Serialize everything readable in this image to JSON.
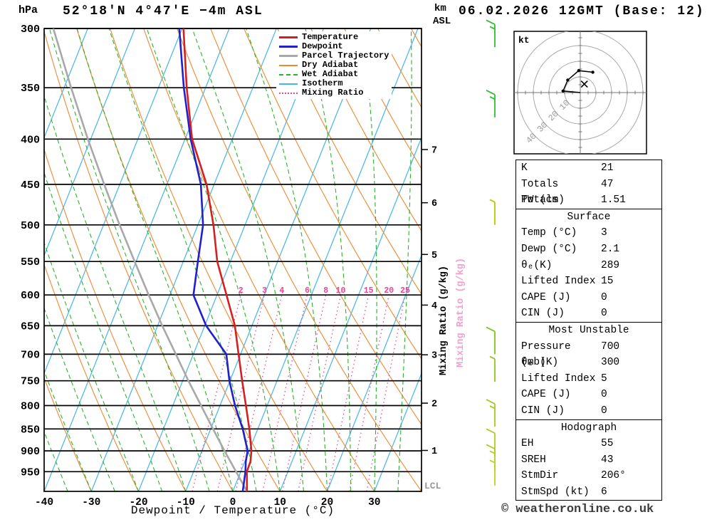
{
  "header": {
    "pressure_unit": "hPa",
    "station_title": "52°18'N 4°47'E −4m ASL",
    "altitude_unit_top": "km",
    "altitude_unit_bottom": "ASL",
    "run_title": "06.02.2026 12GMT (Base: 12)"
  },
  "axes": {
    "pressure_ticks": [
      300,
      350,
      400,
      450,
      500,
      550,
      600,
      650,
      700,
      750,
      800,
      850,
      900,
      950
    ],
    "temp_ticks": [
      -40,
      -30,
      -20,
      -10,
      0,
      10,
      20,
      30
    ],
    "km_ticks": [
      1,
      2,
      3,
      4,
      5,
      6,
      7
    ],
    "x_label": "Dewpoint / Temperature (°C)",
    "mixing_axis_label": "Mixing Ratio (g/kg)",
    "lcl_label": "LCL"
  },
  "legend": {
    "items": [
      {
        "label": "Temperature",
        "color": "#d42020",
        "style": "solid-thick"
      },
      {
        "label": "Dewpoint",
        "color": "#2020cc",
        "style": "solid-thick"
      },
      {
        "label": "Parcel Trajectory",
        "color": "#a8a8a8",
        "style": "solid-thick"
      },
      {
        "label": "Dry Adiabat",
        "color": "#ee8830",
        "style": "solid"
      },
      {
        "label": "Wet Adiabat",
        "color": "#2ab52a",
        "style": "dashed"
      },
      {
        "label": "Isotherm",
        "color": "#45b5e8",
        "style": "solid"
      },
      {
        "label": "Mixing Ratio",
        "color": "#ee4499",
        "style": "dotted"
      }
    ]
  },
  "hodograph": {
    "unit_label": "kt",
    "ring_labels": [
      10,
      20,
      30,
      40
    ],
    "trace_kt": [
      [
        0,
        0
      ],
      [
        -11,
        1
      ],
      [
        -8,
        8
      ],
      [
        -1,
        14
      ],
      [
        8,
        13
      ]
    ],
    "storm_motion_kt": [
      2.6,
      5.4
    ]
  },
  "stats_table": {
    "sections": [
      {
        "header": null,
        "rows": [
          [
            "K",
            "21"
          ],
          [
            "Totals Totals",
            "47"
          ],
          [
            "PW (cm)",
            "1.51"
          ]
        ]
      },
      {
        "header": "Surface",
        "rows": [
          [
            "Temp (°C)",
            "3"
          ],
          [
            "Dewp (°C)",
            "2.1"
          ],
          [
            "θₑ(K)",
            "289"
          ],
          [
            "Lifted Index",
            "15"
          ],
          [
            "CAPE (J)",
            "0"
          ],
          [
            "CIN (J)",
            "0"
          ]
        ]
      },
      {
        "header": "Most Unstable",
        "rows": [
          [
            "Pressure (mb)",
            "700"
          ],
          [
            "θₑ (K)",
            "300"
          ],
          [
            "Lifted Index",
            "5"
          ],
          [
            "CAPE (J)",
            "0"
          ],
          [
            "CIN (J)",
            "0"
          ]
        ]
      },
      {
        "header": "Hodograph",
        "rows": [
          [
            "EH",
            "55"
          ],
          [
            "SREH",
            "43"
          ],
          [
            "StmDir",
            "206°"
          ],
          [
            "StmSpd (kt)",
            "6"
          ]
        ]
      }
    ]
  },
  "footer": {
    "copyright": "© weatheronline.co.uk"
  },
  "chart_data": {
    "type": "line",
    "title": "Skew-T log-P sounding 52°18'N 4°47'E −4m ASL, 06.02.2026 12GMT (Base: 12)",
    "x_axis": {
      "label": "Dewpoint / Temperature (°C)",
      "range": [
        -40,
        40
      ]
    },
    "y_axis": {
      "label": "hPa",
      "range": [
        1000,
        300
      ],
      "scale": "log"
    },
    "series": [
      {
        "name": "Temperature",
        "pressure_hpa": [
          1000,
          950,
          925,
          900,
          850,
          800,
          750,
          700,
          650,
          600,
          550,
          500,
          450,
          400,
          350,
          300
        ],
        "temp_c": [
          3,
          1.3,
          1.2,
          0.5,
          -1.8,
          -4.5,
          -7.4,
          -10.4,
          -13.6,
          -18,
          -22.8,
          -26.7,
          -31.6,
          -38.5,
          -44,
          -49.7
        ]
      },
      {
        "name": "Dewpoint",
        "pressure_hpa": [
          1000,
          950,
          925,
          900,
          850,
          800,
          750,
          700,
          650,
          600,
          550,
          500,
          450,
          400,
          350,
          300
        ],
        "temp_c": [
          2.1,
          1,
          0.2,
          -0.3,
          -3.2,
          -6.8,
          -10.1,
          -13,
          -19.7,
          -25,
          -26.9,
          -28.9,
          -32.8,
          -38.8,
          -44.6,
          -50.6
        ]
      },
      {
        "name": "Parcel Trajectory",
        "pressure_hpa": [
          1000,
          950,
          900,
          850,
          800,
          750,
          700,
          650,
          600,
          550,
          500,
          450,
          400,
          350,
          300
        ],
        "temp_c": [
          3,
          -1,
          -5.2,
          -9.5,
          -14,
          -18.8,
          -23.7,
          -29,
          -34.5,
          -40.3,
          -46.6,
          -53.3,
          -60.6,
          -68.5,
          -77.3
        ]
      }
    ],
    "mixing_ratio_lines_gkg": [
      2,
      3,
      4,
      6,
      8,
      10,
      15,
      20,
      25
    ],
    "isotherms_c": {
      "from": -110,
      "to": 40,
      "step": 10
    },
    "dry_adiabats_c": {
      "from": -40,
      "to": 120,
      "step": 10
    },
    "wet_adiabats_c": {
      "from": -40,
      "to": 40,
      "step": 5
    },
    "km_tick_pressures": {
      "1": 899,
      "2": 795,
      "3": 701,
      "4": 616,
      "5": 540,
      "6": 472,
      "7": 411
    },
    "lcl_pressure_hpa": 985,
    "wind_barbs": [
      {
        "pressure_hpa": 315,
        "speed_kt": 15,
        "color": "#2fbf2f"
      },
      {
        "pressure_hpa": 378,
        "speed_kt": 15,
        "color": "#2fbf2f"
      },
      {
        "pressure_hpa": 500,
        "speed_kt": 5,
        "color": "#b8c800"
      },
      {
        "pressure_hpa": 700,
        "speed_kt": 10,
        "color": "#7fc31f"
      },
      {
        "pressure_hpa": 752,
        "speed_kt": 5,
        "color": "#8fc41f"
      },
      {
        "pressure_hpa": 845,
        "speed_kt": 15,
        "color": "#a3c922"
      },
      {
        "pressure_hpa": 912,
        "speed_kt": 10,
        "color": "#b0cc22"
      },
      {
        "pressure_hpa": 950,
        "speed_kt": 15,
        "color": "#b0cc22"
      },
      {
        "pressure_hpa": 985,
        "speed_kt": 5,
        "color": "#c0cf22"
      }
    ],
    "colors": {
      "temperature": "#d42020",
      "dewpoint": "#2020cc",
      "parcel": "#a8a8a8",
      "dry_adiabat": "#ee8830",
      "wet_adiabat": "#2ab52a",
      "isotherm": "#45b5e8",
      "mixing_ratio": "#ee4499",
      "grid": "#000000"
    }
  }
}
